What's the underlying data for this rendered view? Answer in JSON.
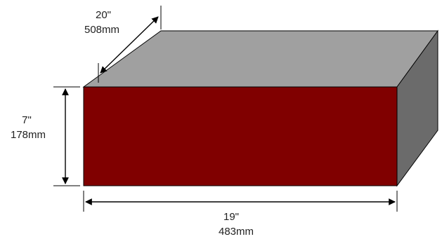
{
  "diagram": {
    "colors": {
      "front_face": "#800000",
      "top_face": "#a0a0a0",
      "side_face": "#6b6b6b",
      "outline": "#000000",
      "dimension_line": "#000000"
    },
    "depth": {
      "inches": "20\"",
      "mm": "508mm"
    },
    "height": {
      "inches": "7\"",
      "mm": "178mm"
    },
    "width": {
      "inches": "19\"",
      "mm": "483mm"
    }
  }
}
